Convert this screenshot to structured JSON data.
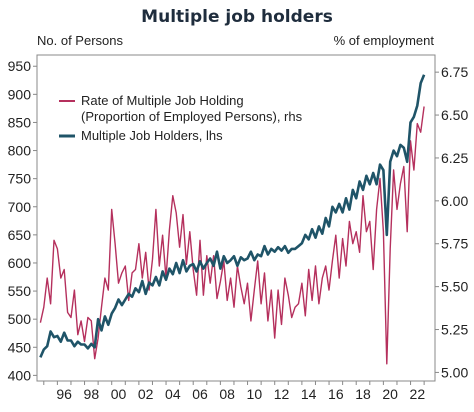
{
  "chart_data": {
    "type": "line",
    "title": "Multiple job holders",
    "left_axis": {
      "label": "No. of Persons",
      "ylim": [
        390,
        970
      ],
      "ticks": [
        400,
        450,
        500,
        550,
        600,
        650,
        700,
        750,
        800,
        850,
        900,
        950
      ]
    },
    "right_axis": {
      "label": "% of employment",
      "ylim": [
        4.95,
        6.85
      ],
      "ticks": [
        5.0,
        5.25,
        5.5,
        5.75,
        6.0,
        6.25,
        6.5,
        6.75
      ]
    },
    "x_axis": {
      "range": [
        1994.5,
        2023.8
      ],
      "ticks": [
        1996,
        1998,
        2000,
        2002,
        2004,
        2006,
        2008,
        2010,
        2012,
        2014,
        2016,
        2018,
        2020,
        2022
      ],
      "tick_labels": [
        "96",
        "98",
        "00",
        "02",
        "04",
        "06",
        "08",
        "10",
        "12",
        "14",
        "16",
        "18",
        "20",
        "22"
      ]
    },
    "legend_position": "top-left",
    "series": [
      {
        "name": "Rate of Multiple Job Holding (Proportion of Employed Persons), rhs",
        "legend_lines": [
          "Rate of Multiple Job Holding",
          "(Proportion of Employed Persons), rhs"
        ],
        "axis": "right",
        "color": "#b5305d",
        "x": [
          1994.75,
          1995.0,
          1995.25,
          1995.5,
          1995.75,
          1996.0,
          1996.25,
          1996.5,
          1996.75,
          1997.0,
          1997.25,
          1997.5,
          1997.75,
          1998.0,
          1998.25,
          1998.5,
          1998.75,
          1999.0,
          1999.25,
          1999.5,
          1999.75,
          2000.0,
          2000.25,
          2000.5,
          2000.75,
          2001.0,
          2001.25,
          2001.5,
          2001.75,
          2002.0,
          2002.25,
          2002.5,
          2002.75,
          2003.0,
          2003.25,
          2003.5,
          2003.75,
          2004.0,
          2004.25,
          2004.5,
          2004.75,
          2005.0,
          2005.25,
          2005.5,
          2005.75,
          2006.0,
          2006.25,
          2006.5,
          2006.75,
          2007.0,
          2007.25,
          2007.5,
          2007.75,
          2008.0,
          2008.25,
          2008.5,
          2008.75,
          2009.0,
          2009.25,
          2009.5,
          2009.75,
          2010.0,
          2010.25,
          2010.5,
          2010.75,
          2011.0,
          2011.25,
          2011.5,
          2011.75,
          2012.0,
          2012.25,
          2012.5,
          2012.75,
          2013.0,
          2013.25,
          2013.5,
          2013.75,
          2014.0,
          2014.25,
          2014.5,
          2014.75,
          2015.0,
          2015.25,
          2015.5,
          2015.75,
          2016.0,
          2016.25,
          2016.5,
          2016.75,
          2017.0,
          2017.25,
          2017.5,
          2017.75,
          2018.0,
          2018.25,
          2018.5,
          2018.75,
          2019.0,
          2019.25,
          2019.5,
          2019.75,
          2020.0,
          2020.25,
          2020.5,
          2020.75,
          2021.0,
          2021.25,
          2021.5,
          2021.75,
          2022.0,
          2022.25,
          2022.5,
          2022.75,
          2023.0
        ],
        "values": [
          5.29,
          5.38,
          5.55,
          5.4,
          5.77,
          5.72,
          5.55,
          5.6,
          5.35,
          5.32,
          5.48,
          5.22,
          5.3,
          5.18,
          5.32,
          5.3,
          5.08,
          5.2,
          5.38,
          5.55,
          5.48,
          5.95,
          5.75,
          5.52,
          5.58,
          5.62,
          5.42,
          5.58,
          5.6,
          5.75,
          5.55,
          5.7,
          5.48,
          5.66,
          5.95,
          5.62,
          5.8,
          5.55,
          5.83,
          6.03,
          5.93,
          5.73,
          5.92,
          5.63,
          5.82,
          5.6,
          5.45,
          5.77,
          5.45,
          5.68,
          5.52,
          5.68,
          5.43,
          5.53,
          5.65,
          5.42,
          5.55,
          5.38,
          5.62,
          5.5,
          5.4,
          5.52,
          5.3,
          5.48,
          5.65,
          5.4,
          5.58,
          5.3,
          5.48,
          5.2,
          5.48,
          5.28,
          5.55,
          5.45,
          5.32,
          5.38,
          5.4,
          5.52,
          5.33,
          5.6,
          5.42,
          5.62,
          5.4,
          5.55,
          5.62,
          5.48,
          5.65,
          5.8,
          5.55,
          5.78,
          5.62,
          5.88,
          5.75,
          5.82,
          5.7,
          6.03,
          5.82,
          5.88,
          5.6,
          5.95,
          6.13,
          5.82,
          5.05,
          5.72,
          6.18,
          5.95,
          6.1,
          6.2,
          5.82,
          6.35,
          6.18,
          6.45,
          6.4,
          6.55
        ]
      },
      {
        "name": "Multiple Job Holders, lhs",
        "legend_lines": [
          "Multiple Job Holders, lhs"
        ],
        "axis": "left",
        "color": "#1f5468",
        "x": [
          1994.75,
          1995.0,
          1995.25,
          1995.5,
          1995.75,
          1996.0,
          1996.25,
          1996.5,
          1996.75,
          1997.0,
          1997.25,
          1997.5,
          1997.75,
          1998.0,
          1998.25,
          1998.5,
          1998.75,
          1999.0,
          1999.25,
          1999.5,
          1999.75,
          2000.0,
          2000.25,
          2000.5,
          2000.75,
          2001.0,
          2001.25,
          2001.5,
          2001.75,
          2002.0,
          2002.25,
          2002.5,
          2002.75,
          2003.0,
          2003.25,
          2003.5,
          2003.75,
          2004.0,
          2004.25,
          2004.5,
          2004.75,
          2005.0,
          2005.25,
          2005.5,
          2005.75,
          2006.0,
          2006.25,
          2006.5,
          2006.75,
          2007.0,
          2007.25,
          2007.5,
          2007.75,
          2008.0,
          2008.25,
          2008.5,
          2008.75,
          2009.0,
          2009.25,
          2009.5,
          2009.75,
          2010.0,
          2010.25,
          2010.5,
          2010.75,
          2011.0,
          2011.25,
          2011.5,
          2011.75,
          2012.0,
          2012.25,
          2012.5,
          2012.75,
          2013.0,
          2013.25,
          2013.5,
          2013.75,
          2014.0,
          2014.25,
          2014.5,
          2014.75,
          2015.0,
          2015.25,
          2015.5,
          2015.75,
          2016.0,
          2016.25,
          2016.5,
          2016.75,
          2017.0,
          2017.25,
          2017.5,
          2017.75,
          2018.0,
          2018.25,
          2018.5,
          2018.75,
          2019.0,
          2019.25,
          2019.5,
          2019.75,
          2020.0,
          2020.25,
          2020.5,
          2020.75,
          2021.0,
          2021.25,
          2021.5,
          2021.75,
          2022.0,
          2022.25,
          2022.5,
          2022.75,
          2023.0
        ],
        "values": [
          432,
          446,
          452,
          478,
          468,
          470,
          460,
          476,
          462,
          462,
          452,
          460,
          455,
          455,
          448,
          456,
          450,
          500,
          480,
          505,
          490,
          510,
          520,
          535,
          525,
          535,
          545,
          540,
          555,
          548,
          568,
          545,
          565,
          560,
          575,
          560,
          585,
          570,
          590,
          580,
          600,
          582,
          605,
          585,
          595,
          598,
          585,
          603,
          590,
          600,
          608,
          595,
          620,
          590,
          612,
          600,
          605,
          612,
          595,
          610,
          605,
          608,
          620,
          605,
          615,
          612,
          630,
          615,
          625,
          620,
          628,
          622,
          630,
          618,
          625,
          625,
          630,
          635,
          650,
          642,
          660,
          645,
          665,
          652,
          680,
          665,
          700,
          690,
          705,
          690,
          715,
          695,
          730,
          715,
          745,
          730,
          755,
          740,
          760,
          740,
          775,
          765,
          650,
          780,
          800,
          790,
          810,
          805,
          780,
          850,
          860,
          880,
          920,
          935
        ]
      }
    ]
  }
}
